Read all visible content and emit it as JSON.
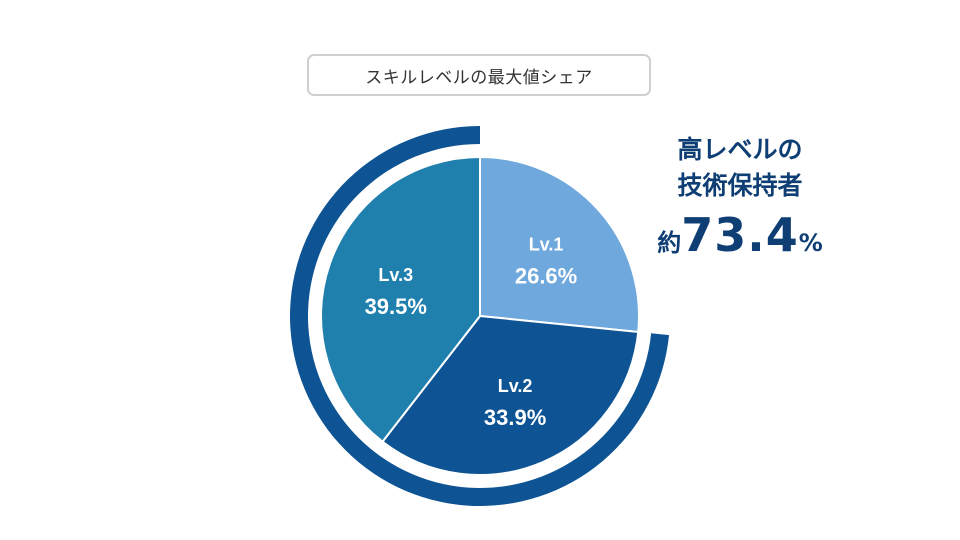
{
  "title": "スキルレベルの最大値シェア",
  "chart_data": {
    "type": "pie",
    "slices": [
      {
        "label": "Lv.1",
        "value": 26.6,
        "display": "26.6%",
        "color": "#6fa8dc"
      },
      {
        "label": "Lv.2",
        "value": 33.9,
        "display": "33.9%",
        "color": "#0e5494"
      },
      {
        "label": "Lv.3",
        "value": 39.5,
        "display": "39.5%",
        "color": "#1f7fad"
      }
    ],
    "highlight_ring": {
      "covers": [
        "Lv.2",
        "Lv.3"
      ],
      "value": 73.4,
      "color": "#0e5494"
    }
  },
  "callout": {
    "line1": "高レベルの",
    "line2": "技術保持者",
    "prefix": "約",
    "number": "73.4",
    "suffix": "%"
  }
}
